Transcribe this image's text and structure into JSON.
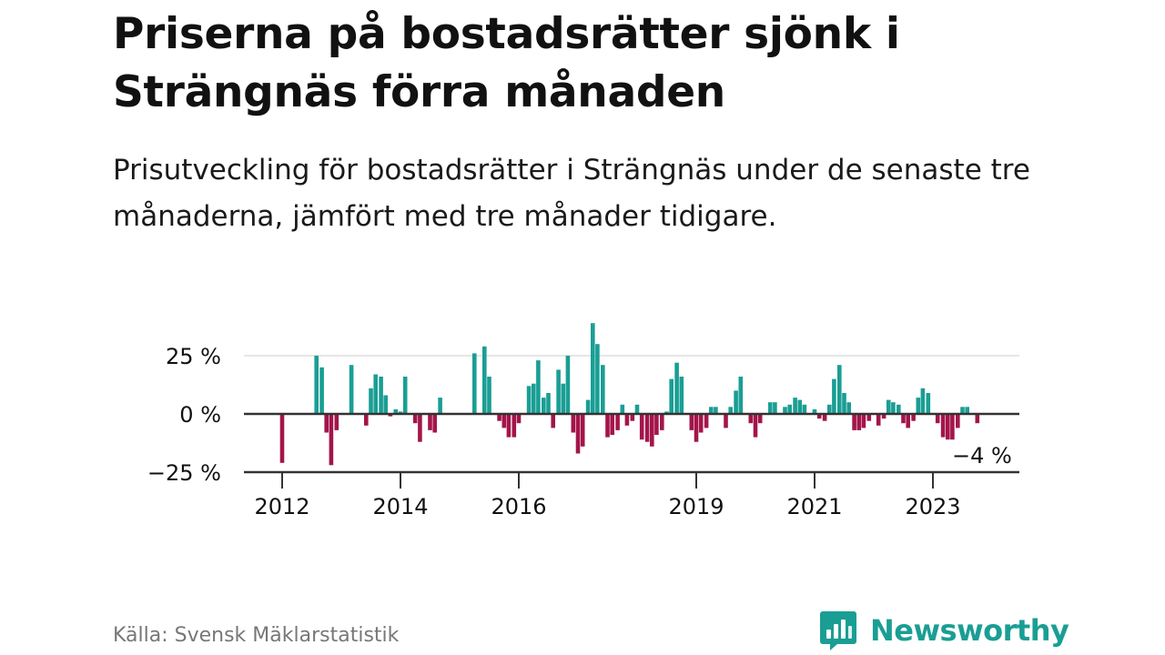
{
  "title": "Priserna på bostadsrätter sjönk i Strängnäs förra månaden",
  "subtitle": "Prisutveckling för bostadsrätter i Strängnäs under de senaste tre månaderna, jämfört med tre månader tidigare.",
  "source": "Källa: Svensk Mäklarstatistik",
  "brand": "Newsworthy",
  "colors": {
    "positive": "#1a9e94",
    "negative": "#a3154a",
    "grid": "#dddddd",
    "axis": "#333333",
    "text": "#111111",
    "muted": "#777777"
  },
  "chart_data": {
    "type": "bar",
    "title": "",
    "xlabel": "",
    "ylabel": "",
    "ylim": [
      -25,
      40
    ],
    "y_ticks": [
      {
        "value": 25,
        "label": "25 %"
      },
      {
        "value": 0,
        "label": "0 %"
      },
      {
        "value": -25,
        "label": "−25 %"
      }
    ],
    "x_ticks": [
      {
        "x": 2012.0,
        "label": "2012"
      },
      {
        "x": 2014.0,
        "label": "2014"
      },
      {
        "x": 2016.0,
        "label": "2016"
      },
      {
        "x": 2019.0,
        "label": "2019"
      },
      {
        "x": 2021.0,
        "label": "2021"
      },
      {
        "x": 2023.0,
        "label": "2023"
      }
    ],
    "grid": true,
    "annotation": {
      "label": "−4 %",
      "x": 2023.83,
      "value": -4
    },
    "points": [
      {
        "x": 2012.0,
        "value": -21
      },
      {
        "x": 2012.58,
        "value": 25
      },
      {
        "x": 2012.67,
        "value": 20
      },
      {
        "x": 2012.75,
        "value": -8
      },
      {
        "x": 2012.83,
        "value": -22
      },
      {
        "x": 2012.92,
        "value": -7
      },
      {
        "x": 2013.17,
        "value": 21
      },
      {
        "x": 2013.42,
        "value": -5
      },
      {
        "x": 2013.5,
        "value": 11
      },
      {
        "x": 2013.58,
        "value": 17
      },
      {
        "x": 2013.67,
        "value": 16
      },
      {
        "x": 2013.75,
        "value": 8
      },
      {
        "x": 2013.83,
        "value": -1
      },
      {
        "x": 2013.92,
        "value": 2
      },
      {
        "x": 2014.0,
        "value": 1
      },
      {
        "x": 2014.08,
        "value": 16
      },
      {
        "x": 2014.25,
        "value": -4
      },
      {
        "x": 2014.33,
        "value": -12
      },
      {
        "x": 2014.5,
        "value": -7
      },
      {
        "x": 2014.58,
        "value": -8
      },
      {
        "x": 2014.67,
        "value": 7
      },
      {
        "x": 2015.25,
        "value": 26
      },
      {
        "x": 2015.42,
        "value": 29
      },
      {
        "x": 2015.5,
        "value": 16
      },
      {
        "x": 2015.67,
        "value": -3
      },
      {
        "x": 2015.75,
        "value": -6
      },
      {
        "x": 2015.83,
        "value": -10
      },
      {
        "x": 2015.92,
        "value": -10
      },
      {
        "x": 2016.0,
        "value": -4
      },
      {
        "x": 2016.17,
        "value": 12
      },
      {
        "x": 2016.25,
        "value": 13
      },
      {
        "x": 2016.33,
        "value": 23
      },
      {
        "x": 2016.42,
        "value": 7
      },
      {
        "x": 2016.5,
        "value": 9
      },
      {
        "x": 2016.58,
        "value": -6
      },
      {
        "x": 2016.67,
        "value": 19
      },
      {
        "x": 2016.75,
        "value": 13
      },
      {
        "x": 2016.83,
        "value": 25
      },
      {
        "x": 2016.92,
        "value": -8
      },
      {
        "x": 2017.0,
        "value": -17
      },
      {
        "x": 2017.08,
        "value": -14
      },
      {
        "x": 2017.17,
        "value": 6
      },
      {
        "x": 2017.25,
        "value": 39
      },
      {
        "x": 2017.33,
        "value": 30
      },
      {
        "x": 2017.42,
        "value": 21
      },
      {
        "x": 2017.5,
        "value": -10
      },
      {
        "x": 2017.58,
        "value": -9
      },
      {
        "x": 2017.67,
        "value": -7
      },
      {
        "x": 2017.75,
        "value": 4
      },
      {
        "x": 2017.83,
        "value": -5
      },
      {
        "x": 2017.92,
        "value": -3
      },
      {
        "x": 2018.0,
        "value": 4
      },
      {
        "x": 2018.08,
        "value": -11
      },
      {
        "x": 2018.17,
        "value": -12
      },
      {
        "x": 2018.25,
        "value": -14
      },
      {
        "x": 2018.33,
        "value": -9
      },
      {
        "x": 2018.42,
        "value": -7
      },
      {
        "x": 2018.5,
        "value": 1
      },
      {
        "x": 2018.58,
        "value": 15
      },
      {
        "x": 2018.67,
        "value": 22
      },
      {
        "x": 2018.75,
        "value": 16
      },
      {
        "x": 2018.92,
        "value": -7
      },
      {
        "x": 2019.0,
        "value": -12
      },
      {
        "x": 2019.08,
        "value": -8
      },
      {
        "x": 2019.17,
        "value": -6
      },
      {
        "x": 2019.25,
        "value": 3
      },
      {
        "x": 2019.33,
        "value": 3
      },
      {
        "x": 2019.5,
        "value": -6
      },
      {
        "x": 2019.58,
        "value": 3
      },
      {
        "x": 2019.67,
        "value": 10
      },
      {
        "x": 2019.75,
        "value": 16
      },
      {
        "x": 2019.92,
        "value": -4
      },
      {
        "x": 2020.0,
        "value": -10
      },
      {
        "x": 2020.08,
        "value": -4
      },
      {
        "x": 2020.25,
        "value": 5
      },
      {
        "x": 2020.33,
        "value": 5
      },
      {
        "x": 2020.5,
        "value": 3
      },
      {
        "x": 2020.58,
        "value": 4
      },
      {
        "x": 2020.67,
        "value": 7
      },
      {
        "x": 2020.75,
        "value": 6
      },
      {
        "x": 2020.83,
        "value": 4
      },
      {
        "x": 2021.0,
        "value": 2
      },
      {
        "x": 2021.08,
        "value": -2
      },
      {
        "x": 2021.17,
        "value": -3
      },
      {
        "x": 2021.25,
        "value": 4
      },
      {
        "x": 2021.33,
        "value": 15
      },
      {
        "x": 2021.42,
        "value": 21
      },
      {
        "x": 2021.5,
        "value": 9
      },
      {
        "x": 2021.58,
        "value": 5
      },
      {
        "x": 2021.67,
        "value": -7
      },
      {
        "x": 2021.75,
        "value": -7
      },
      {
        "x": 2021.83,
        "value": -6
      },
      {
        "x": 2021.92,
        "value": -3
      },
      {
        "x": 2022.08,
        "value": -5
      },
      {
        "x": 2022.17,
        "value": -2
      },
      {
        "x": 2022.25,
        "value": 6
      },
      {
        "x": 2022.33,
        "value": 5
      },
      {
        "x": 2022.42,
        "value": 4
      },
      {
        "x": 2022.5,
        "value": -4
      },
      {
        "x": 2022.58,
        "value": -6
      },
      {
        "x": 2022.67,
        "value": -3
      },
      {
        "x": 2022.75,
        "value": 7
      },
      {
        "x": 2022.83,
        "value": 11
      },
      {
        "x": 2022.92,
        "value": 9
      },
      {
        "x": 2023.08,
        "value": -4
      },
      {
        "x": 2023.17,
        "value": -10
      },
      {
        "x": 2023.25,
        "value": -11
      },
      {
        "x": 2023.33,
        "value": -11
      },
      {
        "x": 2023.42,
        "value": -6
      },
      {
        "x": 2023.5,
        "value": 3
      },
      {
        "x": 2023.58,
        "value": 3
      },
      {
        "x": 2023.75,
        "value": -4
      }
    ]
  }
}
